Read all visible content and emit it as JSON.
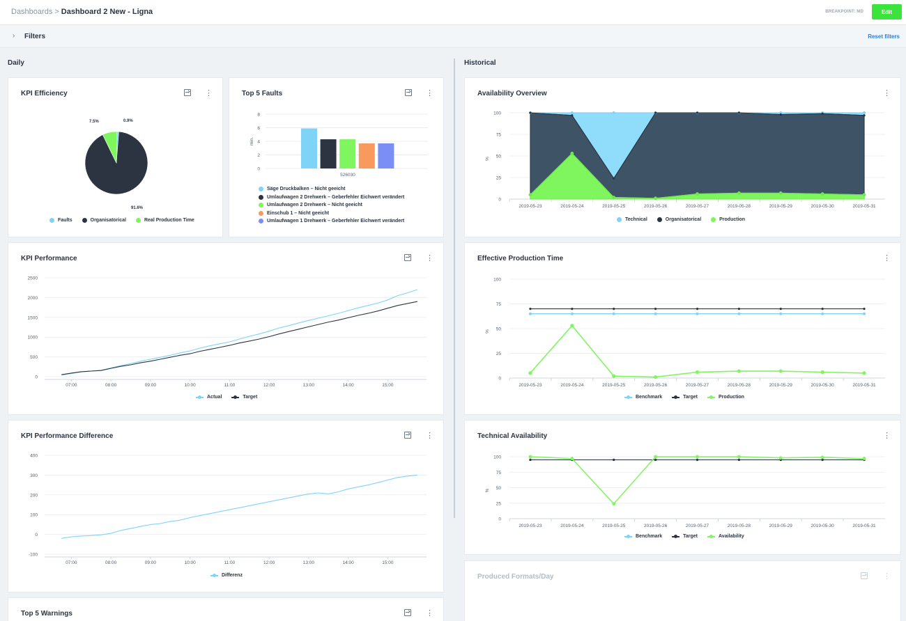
{
  "header": {
    "breadcrumb_root": "Dashboards",
    "breadcrumb_sep": ">",
    "breadcrumb_current": "Dashboard 2 New - Ligna",
    "breakpoint": "BREAKPOINT: MD",
    "edit_label": "Edit"
  },
  "filters": {
    "label": "Filters",
    "reset_label": "Reset filters"
  },
  "colors": {
    "accent": "#3de33d",
    "technical": "#7fd3f7",
    "organisational": "#2b3440",
    "production": "#7ff55e",
    "orange": "#f79a5c",
    "purple": "#7a8ef5",
    "area_dark": "#3f5367"
  },
  "sections": {
    "daily": "Daily",
    "historical": "Historical"
  },
  "cards": {
    "kpi_efficiency": {
      "title": "KPI Efficiency",
      "legend": [
        "Faults",
        "Organisatorical",
        "Real Production Time"
      ]
    },
    "top5_faults": {
      "title": "Top 5 Faults"
    },
    "kpi_performance": {
      "title": "KPI Performance",
      "legend": [
        "Actual",
        "Target"
      ]
    },
    "kpi_perf_diff": {
      "title": "KPI Performance Difference",
      "legend": [
        "Differenz"
      ]
    },
    "top5_warnings": {
      "title": "Top 5 Warnings"
    },
    "availability_overview": {
      "title": "Availability Overview",
      "legend": [
        "Technical",
        "Organisatorical",
        "Production"
      ]
    },
    "effective_production": {
      "title": "Effective Production Time",
      "legend": [
        "Benchmark",
        "Target",
        "Production"
      ]
    },
    "technical_availability": {
      "title": "Technical Availability",
      "legend": [
        "Benchmark",
        "Target",
        "Availability"
      ]
    },
    "produced_formats": {
      "title": "Produced Formats/Day"
    }
  },
  "chart_data": [
    {
      "id": "kpi-efficiency",
      "type": "pie",
      "labels": [
        "Faults",
        "Organisatorical",
        "Real Production Time"
      ],
      "values": [
        0.9,
        91.6,
        7.5
      ],
      "value_labels": [
        "0.9%",
        "91.6%",
        "7.5%"
      ]
    },
    {
      "id": "top5-faults",
      "type": "bar",
      "categories": [
        "526030"
      ],
      "ylabel": "min.",
      "ylim": [
        0,
        8
      ],
      "yticks": [
        0,
        2,
        4,
        6,
        8
      ],
      "series": [
        {
          "name": "Säge Druckbalken – Nicht geeicht",
          "values": [
            5.9
          ]
        },
        {
          "name": "Umlaufwagen 2 Drehwerk – Geberfehler Eichwert verändert",
          "values": [
            4.3
          ]
        },
        {
          "name": "Umlaufwagen 2 Drehwerk – Nicht geeicht",
          "values": [
            4.3
          ]
        },
        {
          "name": "Einschub 1 – Nicht geeicht",
          "values": [
            3.7
          ]
        },
        {
          "name": "Umlaufwagen 1 Drehwerk – Geberfehler Eichwert verändert",
          "values": [
            3.7
          ]
        }
      ]
    },
    {
      "id": "kpi-performance",
      "type": "line",
      "x": [
        "06:45",
        "07:00",
        "07:15",
        "07:30",
        "07:45",
        "08:00",
        "08:15",
        "08:30",
        "08:45",
        "09:00",
        "09:15",
        "09:30",
        "09:45",
        "10:00",
        "10:15",
        "10:30",
        "10:45",
        "11:00",
        "11:15",
        "11:30",
        "11:45",
        "12:00",
        "12:15",
        "12:30",
        "12:45",
        "13:00",
        "13:15",
        "13:30",
        "13:45",
        "14:00",
        "14:15",
        "14:30",
        "14:45",
        "15:00",
        "15:15",
        "15:30",
        "15:45"
      ],
      "xticks": [
        "07:00",
        "08:00",
        "09:00",
        "10:00",
        "11:00",
        "12:00",
        "13:00",
        "14:00",
        "15:00"
      ],
      "ylim": [
        0,
        2500
      ],
      "yticks": [
        0,
        500,
        1000,
        1500,
        2000,
        2500
      ],
      "series": [
        {
          "name": "Actual",
          "values": [
            40,
            80,
            120,
            140,
            160,
            220,
            280,
            330,
            390,
            440,
            490,
            540,
            600,
            650,
            720,
            780,
            830,
            880,
            950,
            1020,
            1080,
            1150,
            1230,
            1290,
            1360,
            1420,
            1480,
            1540,
            1600,
            1670,
            1740,
            1800,
            1860,
            1940,
            2050,
            2120,
            2200
          ]
        },
        {
          "name": "Target",
          "values": [
            50,
            90,
            125,
            140,
            155,
            210,
            260,
            300,
            350,
            390,
            440,
            490,
            540,
            580,
            640,
            690,
            740,
            790,
            850,
            900,
            950,
            1010,
            1080,
            1140,
            1200,
            1260,
            1320,
            1380,
            1430,
            1490,
            1550,
            1600,
            1660,
            1730,
            1800,
            1850,
            1900
          ]
        }
      ]
    },
    {
      "id": "kpi-performance-difference",
      "type": "line",
      "x": [
        "06:45",
        "07:00",
        "07:15",
        "07:30",
        "07:45",
        "08:00",
        "08:15",
        "08:30",
        "08:45",
        "09:00",
        "09:15",
        "09:30",
        "09:45",
        "10:00",
        "10:15",
        "10:30",
        "10:45",
        "11:00",
        "11:15",
        "11:30",
        "11:45",
        "12:00",
        "12:15",
        "12:30",
        "12:45",
        "13:00",
        "13:15",
        "13:30",
        "13:45",
        "14:00",
        "14:15",
        "14:30",
        "14:45",
        "15:00",
        "15:15",
        "15:30",
        "15:45"
      ],
      "xticks": [
        "07:00",
        "08:00",
        "09:00",
        "10:00",
        "11:00",
        "12:00",
        "13:00",
        "14:00",
        "15:00"
      ],
      "ylim": [
        -100,
        400
      ],
      "yticks": [
        -100,
        0,
        100,
        200,
        300,
        400
      ],
      "series": [
        {
          "name": "Differenz",
          "values": [
            -20,
            -12,
            -8,
            -6,
            -2,
            5,
            20,
            30,
            40,
            50,
            55,
            65,
            72,
            85,
            95,
            105,
            115,
            125,
            135,
            145,
            155,
            165,
            175,
            185,
            195,
            205,
            210,
            205,
            215,
            230,
            240,
            250,
            262,
            275,
            288,
            295,
            300
          ]
        }
      ]
    },
    {
      "id": "availability-overview",
      "type": "area",
      "x": [
        "2019-05-23",
        "2019-05-24",
        "2019-05-25",
        "2019-05-26",
        "2019-05-27",
        "2019-05-28",
        "2019-05-29",
        "2019-05-30",
        "2019-05-31"
      ],
      "ylabel": "%",
      "ylim": [
        0,
        100
      ],
      "yticks": [
        0,
        25,
        50,
        75,
        100
      ],
      "series": [
        {
          "name": "Technical",
          "values": [
            100,
            100,
            100,
            100,
            100,
            100,
            100,
            100,
            100
          ]
        },
        {
          "name": "Organisatorical",
          "values": [
            100,
            97,
            24,
            100,
            100,
            100,
            98,
            99,
            97
          ]
        },
        {
          "name": "Production",
          "values": [
            5,
            53,
            2,
            1,
            6,
            7,
            7,
            6,
            5
          ]
        }
      ]
    },
    {
      "id": "effective-production-time",
      "type": "line",
      "x": [
        "2019-05-23",
        "2019-05-24",
        "2019-05-25",
        "2019-05-26",
        "2019-05-27",
        "2019-05-28",
        "2019-05-29",
        "2019-05-30",
        "2019-05-31"
      ],
      "ylabel": "%",
      "ylim": [
        0,
        100
      ],
      "yticks": [
        0,
        25,
        50,
        75,
        100
      ],
      "series": [
        {
          "name": "Benchmark",
          "values": [
            65,
            65,
            65,
            65,
            65,
            65,
            65,
            65,
            65
          ]
        },
        {
          "name": "Target",
          "values": [
            70,
            70,
            70,
            70,
            70,
            70,
            70,
            70,
            70
          ]
        },
        {
          "name": "Production",
          "values": [
            5,
            53,
            2,
            1,
            6,
            7,
            7,
            6,
            5
          ]
        }
      ]
    },
    {
      "id": "technical-availability",
      "type": "line",
      "x": [
        "2019-05-23",
        "2019-05-24",
        "2019-05-25",
        "2019-05-26",
        "2019-05-27",
        "2019-05-28",
        "2019-05-29",
        "2019-05-30",
        "2019-05-31"
      ],
      "ylabel": "%",
      "ylim": [
        0,
        100
      ],
      "yticks": [
        0,
        25,
        50,
        75,
        100
      ],
      "series": [
        {
          "name": "Benchmark",
          "values": [
            95,
            95,
            95,
            95,
            95,
            95,
            95,
            95,
            95
          ]
        },
        {
          "name": "Target",
          "values": [
            95,
            95,
            95,
            95,
            95,
            95,
            95,
            95,
            95
          ]
        },
        {
          "name": "Availability",
          "values": [
            100,
            97,
            24,
            100,
            100,
            100,
            98,
            99,
            97
          ]
        }
      ]
    }
  ]
}
